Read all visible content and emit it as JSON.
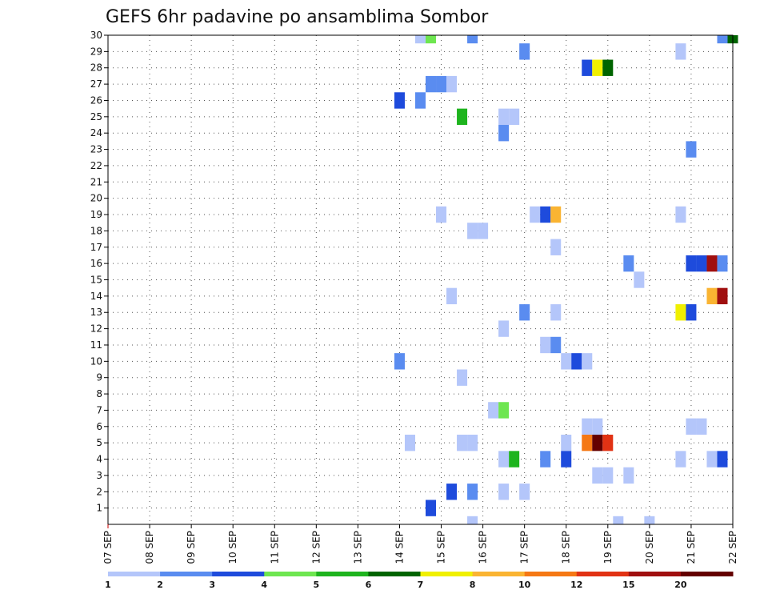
{
  "chart_data": {
    "type": "heatmap",
    "title": "GEFS 6hr padavine po ansamblima Sombor",
    "y_labels": [
      "1",
      "2",
      "3",
      "4",
      "5",
      "6",
      "7",
      "8",
      "9",
      "10",
      "11",
      "12",
      "13",
      "14",
      "15",
      "16",
      "17",
      "18",
      "19",
      "20",
      "21",
      "22",
      "23",
      "24",
      "25",
      "26",
      "27",
      "28",
      "29",
      "30"
    ],
    "x_labels": [
      "07 SEP",
      "08 SEP",
      "09 SEP",
      "10 SEP",
      "11 SEP",
      "12 SEP",
      "13 SEP",
      "14 SEP",
      "15 SEP",
      "16 SEP",
      "17 SEP",
      "18 SEP",
      "19 SEP",
      "20 SEP",
      "21 SEP",
      "22 SEP"
    ],
    "x_range_days": [
      0,
      15
    ],
    "y_range": [
      0,
      30
    ],
    "grid": true,
    "legend": {
      "placement": "bottom",
      "levels": [
        "1",
        "2",
        "3",
        "4",
        "5",
        "6",
        "7",
        "8",
        "10",
        "12",
        "15",
        "20"
      ],
      "colors": [
        "#b4c6fa",
        "#5a8cf0",
        "#1e4bdc",
        "#6ee650",
        "#1eb41e",
        "#006400",
        "#f0f000",
        "#fab432",
        "#f57814",
        "#e13214",
        "#a00f0f",
        "#640000"
      ]
    },
    "cells": [
      {
        "member": 30,
        "day": 7.5,
        "bin": 1
      },
      {
        "member": 30,
        "day": 7.75,
        "bin": 4
      },
      {
        "member": 30,
        "day": 8.75,
        "bin": 2
      },
      {
        "member": 30,
        "day": 14.75,
        "bin": 2
      },
      {
        "member": 30,
        "day": 15.0,
        "bin": 6
      },
      {
        "member": 29,
        "day": 10.0,
        "bin": 2
      },
      {
        "member": 29,
        "day": 13.75,
        "bin": 1
      },
      {
        "member": 28,
        "day": 11.5,
        "bin": 3
      },
      {
        "member": 28,
        "day": 11.75,
        "bin": 7
      },
      {
        "member": 28,
        "day": 12.0,
        "bin": 6
      },
      {
        "member": 27,
        "day": 7.75,
        "bin": 2
      },
      {
        "member": 27,
        "day": 8.0,
        "bin": 2
      },
      {
        "member": 27,
        "day": 8.25,
        "bin": 1
      },
      {
        "member": 26,
        "day": 7.0,
        "bin": 3
      },
      {
        "member": 26,
        "day": 7.5,
        "bin": 2
      },
      {
        "member": 25,
        "day": 8.5,
        "bin": 5
      },
      {
        "member": 25,
        "day": 9.5,
        "bin": 1
      },
      {
        "member": 25,
        "day": 9.75,
        "bin": 1
      },
      {
        "member": 24,
        "day": 9.5,
        "bin": 2
      },
      {
        "member": 23,
        "day": 14.0,
        "bin": 2
      },
      {
        "member": 19,
        "day": 8.0,
        "bin": 1
      },
      {
        "member": 19,
        "day": 10.25,
        "bin": 1
      },
      {
        "member": 19,
        "day": 10.5,
        "bin": 3
      },
      {
        "member": 19,
        "day": 10.75,
        "bin": 8
      },
      {
        "member": 19,
        "day": 13.75,
        "bin": 1
      },
      {
        "member": 18,
        "day": 8.75,
        "bin": 1
      },
      {
        "member": 18,
        "day": 9.0,
        "bin": 1
      },
      {
        "member": 17,
        "day": 10.75,
        "bin": 1
      },
      {
        "member": 16,
        "day": 12.5,
        "bin": 2
      },
      {
        "member": 16,
        "day": 14.0,
        "bin": 3
      },
      {
        "member": 16,
        "day": 14.25,
        "bin": 3
      },
      {
        "member": 16,
        "day": 14.5,
        "bin": 11
      },
      {
        "member": 16,
        "day": 14.75,
        "bin": 2
      },
      {
        "member": 15,
        "day": 12.75,
        "bin": 1
      },
      {
        "member": 14,
        "day": 8.25,
        "bin": 1
      },
      {
        "member": 14,
        "day": 14.5,
        "bin": 8
      },
      {
        "member": 14,
        "day": 14.75,
        "bin": 11
      },
      {
        "member": 13,
        "day": 10.0,
        "bin": 2
      },
      {
        "member": 13,
        "day": 10.75,
        "bin": 1
      },
      {
        "member": 13,
        "day": 13.75,
        "bin": 7
      },
      {
        "member": 13,
        "day": 14.0,
        "bin": 3
      },
      {
        "member": 12,
        "day": 9.5,
        "bin": 1
      },
      {
        "member": 11,
        "day": 10.5,
        "bin": 1
      },
      {
        "member": 11,
        "day": 10.75,
        "bin": 2
      },
      {
        "member": 10,
        "day": 7.0,
        "bin": 2
      },
      {
        "member": 10,
        "day": 11.0,
        "bin": 1
      },
      {
        "member": 10,
        "day": 11.25,
        "bin": 3
      },
      {
        "member": 10,
        "day": 11.5,
        "bin": 1
      },
      {
        "member": 9,
        "day": 8.5,
        "bin": 1
      },
      {
        "member": 7,
        "day": 9.25,
        "bin": 1
      },
      {
        "member": 7,
        "day": 9.5,
        "bin": 4
      },
      {
        "member": 6,
        "day": 11.5,
        "bin": 1
      },
      {
        "member": 6,
        "day": 11.75,
        "bin": 1
      },
      {
        "member": 6,
        "day": 14.0,
        "bin": 1
      },
      {
        "member": 6,
        "day": 14.25,
        "bin": 1
      },
      {
        "member": 5,
        "day": 7.25,
        "bin": 1
      },
      {
        "member": 5,
        "day": 8.5,
        "bin": 1
      },
      {
        "member": 5,
        "day": 8.75,
        "bin": 1
      },
      {
        "member": 5,
        "day": 11.0,
        "bin": 1
      },
      {
        "member": 5,
        "day": 11.5,
        "bin": 9
      },
      {
        "member": 5,
        "day": 11.75,
        "bin": 12
      },
      {
        "member": 5,
        "day": 12.0,
        "bin": 10
      },
      {
        "member": 4,
        "day": 9.5,
        "bin": 1
      },
      {
        "member": 4,
        "day": 9.75,
        "bin": 5
      },
      {
        "member": 4,
        "day": 10.5,
        "bin": 2
      },
      {
        "member": 4,
        "day": 11.0,
        "bin": 3
      },
      {
        "member": 4,
        "day": 13.75,
        "bin": 1
      },
      {
        "member": 4,
        "day": 14.5,
        "bin": 1
      },
      {
        "member": 4,
        "day": 14.75,
        "bin": 3
      },
      {
        "member": 3,
        "day": 11.75,
        "bin": 1
      },
      {
        "member": 3,
        "day": 12.0,
        "bin": 1
      },
      {
        "member": 3,
        "day": 12.5,
        "bin": 1
      },
      {
        "member": 2,
        "day": 8.25,
        "bin": 3
      },
      {
        "member": 2,
        "day": 8.75,
        "bin": 2
      },
      {
        "member": 2,
        "day": 9.5,
        "bin": 1
      },
      {
        "member": 2,
        "day": 10.0,
        "bin": 1
      },
      {
        "member": 1,
        "day": 7.75,
        "bin": 3
      },
      {
        "member": 0,
        "day": 8.75,
        "bin": 1
      },
      {
        "member": 0,
        "day": 12.25,
        "bin": 1
      },
      {
        "member": 0,
        "day": 13.0,
        "bin": 1
      }
    ]
  }
}
